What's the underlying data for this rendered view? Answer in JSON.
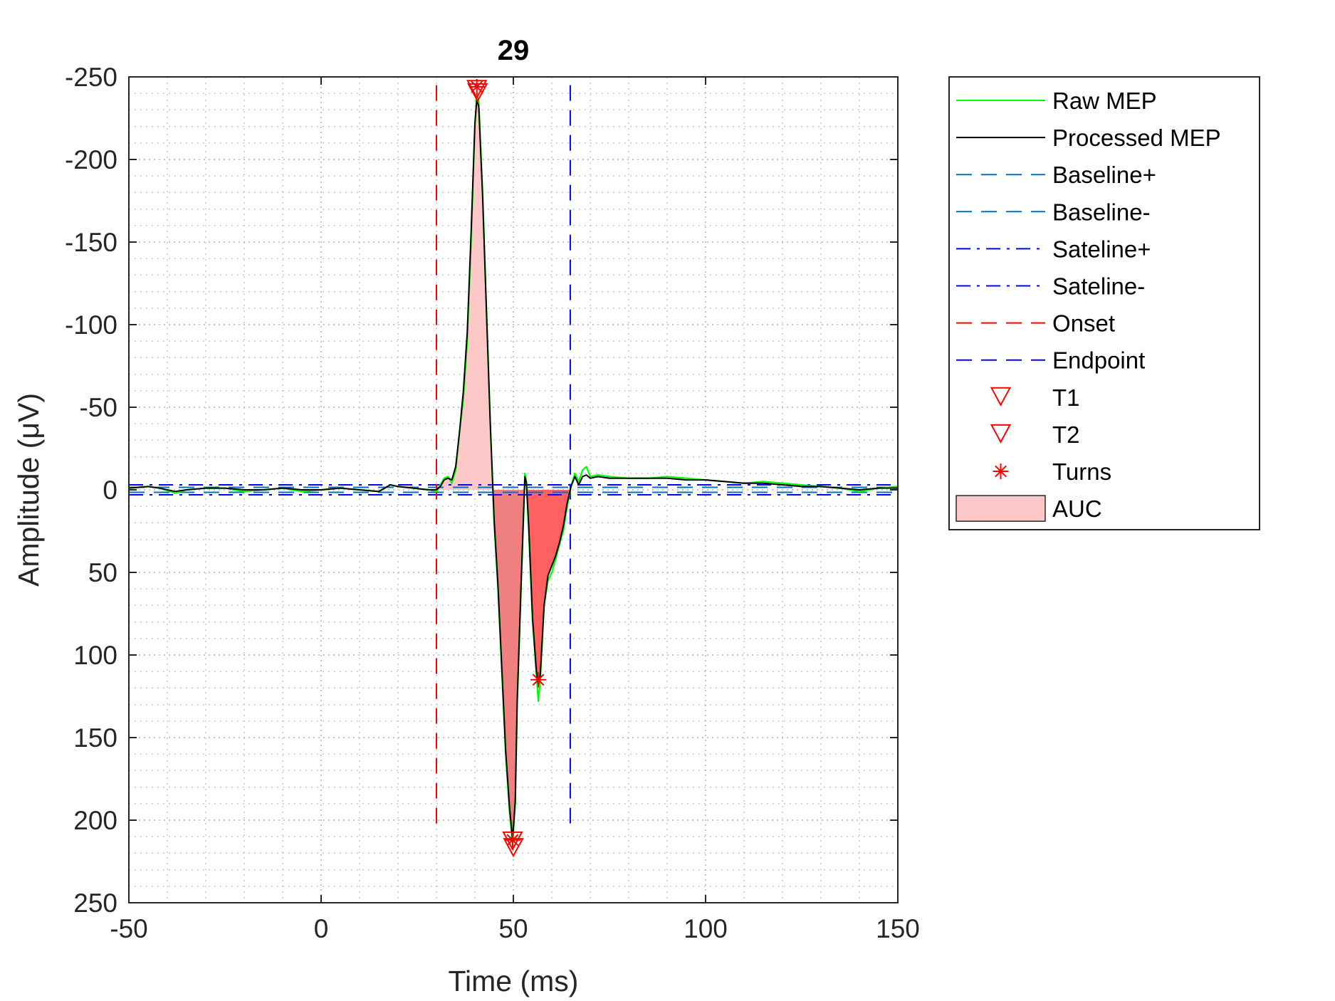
{
  "chart_data": {
    "type": "line",
    "title": "29",
    "xlabel": "Time (ms)",
    "ylabel": "Amplitude (μV)",
    "xlim": [
      -50,
      150
    ],
    "ylim": [
      -250,
      250
    ],
    "y_reversed": true,
    "xticks": [
      -50,
      0,
      50,
      100,
      150
    ],
    "xtick_labels": [
      "-50",
      "0",
      "50",
      "100",
      "150"
    ],
    "yticks": [
      -250,
      -200,
      -150,
      -100,
      -50,
      0,
      50,
      100,
      150,
      200,
      250
    ],
    "ytick_labels": [
      "-250",
      "-200",
      "-150",
      "-100",
      "-50",
      "0",
      "50",
      "100",
      "150",
      "200",
      "250"
    ],
    "grid": true,
    "minor_grid": true,
    "legend_position": "outside-right",
    "series": [
      {
        "name": "Raw MEP",
        "style": "solid",
        "color": "#00ff00",
        "points": [
          [
            -50,
            -1
          ],
          [
            -45,
            -2
          ],
          [
            -42,
            -1
          ],
          [
            -38,
            2
          ],
          [
            -35,
            0
          ],
          [
            -30,
            -1
          ],
          [
            -25,
            -1
          ],
          [
            -20,
            1
          ],
          [
            -15,
            0
          ],
          [
            -10,
            -1
          ],
          [
            -5,
            1
          ],
          [
            0,
            0
          ],
          [
            5,
            -1
          ],
          [
            10,
            0
          ],
          [
            15,
            1
          ],
          [
            18,
            -3
          ],
          [
            20,
            -2
          ],
          [
            24,
            -1
          ],
          [
            28,
            0
          ],
          [
            30,
            1
          ],
          [
            31,
            -3
          ],
          [
            32,
            -7
          ],
          [
            33,
            -8
          ],
          [
            34,
            -4
          ],
          [
            35,
            -12
          ],
          [
            36,
            -35
          ],
          [
            37,
            -55
          ],
          [
            38,
            -90
          ],
          [
            39,
            -150
          ],
          [
            40,
            -220
          ],
          [
            40.5,
            -240
          ],
          [
            41,
            -235
          ],
          [
            42,
            -180
          ],
          [
            43,
            -110
          ],
          [
            44,
            -40
          ],
          [
            45,
            20
          ],
          [
            46,
            60
          ],
          [
            47,
            110
          ],
          [
            48,
            160
          ],
          [
            49,
            195
          ],
          [
            49.8,
            214
          ],
          [
            50.5,
            190
          ],
          [
            51,
            130
          ],
          [
            52,
            60
          ],
          [
            52.6,
            20
          ],
          [
            53,
            -10
          ],
          [
            53.4,
            -5
          ],
          [
            54,
            25
          ],
          [
            55,
            80
          ],
          [
            56,
            112
          ],
          [
            56.5,
            128
          ],
          [
            57,
            115
          ],
          [
            58,
            70
          ],
          [
            59,
            55
          ],
          [
            60,
            50
          ],
          [
            61,
            42
          ],
          [
            62,
            33
          ],
          [
            63,
            25
          ],
          [
            64,
            10
          ],
          [
            65,
            -2
          ],
          [
            66,
            -10
          ],
          [
            67,
            -5
          ],
          [
            68,
            -12
          ],
          [
            69,
            -14
          ],
          [
            70,
            -8
          ],
          [
            72,
            -9
          ],
          [
            75,
            -8
          ],
          [
            80,
            -7
          ],
          [
            85,
            -7
          ],
          [
            90,
            -8
          ],
          [
            95,
            -7
          ],
          [
            100,
            -6
          ],
          [
            105,
            -5
          ],
          [
            110,
            -4
          ],
          [
            115,
            -5
          ],
          [
            120,
            -4
          ],
          [
            125,
            -3
          ],
          [
            130,
            -2
          ],
          [
            135,
            -1
          ],
          [
            140,
            1
          ],
          [
            145,
            -1
          ],
          [
            150,
            -2
          ]
        ]
      },
      {
        "name": "Processed MEP",
        "style": "solid",
        "color": "#000000",
        "points": [
          [
            -50,
            -1
          ],
          [
            -45,
            -2
          ],
          [
            -42,
            -1
          ],
          [
            -38,
            1
          ],
          [
            -35,
            0
          ],
          [
            -30,
            -1
          ],
          [
            -25,
            -1
          ],
          [
            -20,
            0
          ],
          [
            -15,
            0
          ],
          [
            -10,
            -1
          ],
          [
            -5,
            0
          ],
          [
            0,
            0
          ],
          [
            5,
            -1
          ],
          [
            10,
            0
          ],
          [
            15,
            1
          ],
          [
            18,
            -3
          ],
          [
            20,
            -2
          ],
          [
            24,
            -1
          ],
          [
            28,
            0
          ],
          [
            30,
            0
          ],
          [
            31,
            -2
          ],
          [
            32,
            -6
          ],
          [
            33,
            -7
          ],
          [
            34,
            -6
          ],
          [
            35,
            -14
          ],
          [
            36,
            -35
          ],
          [
            37,
            -60
          ],
          [
            38,
            -95
          ],
          [
            39,
            -155
          ],
          [
            40,
            -222
          ],
          [
            40.5,
            -236
          ],
          [
            41,
            -232
          ],
          [
            42,
            -178
          ],
          [
            43,
            -108
          ],
          [
            44,
            -40
          ],
          [
            45,
            18
          ],
          [
            46,
            58
          ],
          [
            47,
            108
          ],
          [
            48,
            158
          ],
          [
            49,
            192
          ],
          [
            49.8,
            212
          ],
          [
            50.5,
            188
          ],
          [
            51,
            128
          ],
          [
            52,
            58
          ],
          [
            52.6,
            18
          ],
          [
            53,
            -8
          ],
          [
            53.4,
            -4
          ],
          [
            54,
            22
          ],
          [
            55,
            78
          ],
          [
            56,
            110
          ],
          [
            56.5,
            118
          ],
          [
            57,
            112
          ],
          [
            58,
            70
          ],
          [
            59,
            52
          ],
          [
            60,
            46
          ],
          [
            61,
            40
          ],
          [
            62,
            32
          ],
          [
            63,
            22
          ],
          [
            64,
            8
          ],
          [
            65,
            -2
          ],
          [
            66,
            -8
          ],
          [
            67,
            -3
          ],
          [
            68,
            -8
          ],
          [
            69,
            -9
          ],
          [
            70,
            -7
          ],
          [
            72,
            -8
          ],
          [
            75,
            -7
          ],
          [
            80,
            -7
          ],
          [
            85,
            -7
          ],
          [
            90,
            -7
          ],
          [
            95,
            -6
          ],
          [
            100,
            -6
          ],
          [
            105,
            -5
          ],
          [
            110,
            -4
          ],
          [
            115,
            -4
          ],
          [
            120,
            -3
          ],
          [
            125,
            -2
          ],
          [
            130,
            -2
          ],
          [
            135,
            -1
          ],
          [
            140,
            0
          ],
          [
            145,
            -1
          ],
          [
            150,
            -1
          ]
        ]
      }
    ],
    "reference_lines": [
      {
        "name": "Baseline+",
        "orientation": "horizontal",
        "value": 1.5,
        "x_range": [
          -50,
          150
        ],
        "style": "dashed",
        "color": "#0072bd"
      },
      {
        "name": "Baseline-",
        "orientation": "horizontal",
        "value": -1.5,
        "x_range": [
          -50,
          150
        ],
        "style": "dashed",
        "color": "#0072bd"
      },
      {
        "name": "Sateline+",
        "orientation": "horizontal",
        "value": 3,
        "x_range": [
          -50,
          150
        ],
        "style": "dashdot",
        "color": "#0000ff"
      },
      {
        "name": "Sateline-",
        "orientation": "horizontal",
        "value": -3,
        "x_range": [
          -50,
          150
        ],
        "style": "dashdot",
        "color": "#0000ff"
      },
      {
        "name": "Onset",
        "orientation": "vertical",
        "value": 30,
        "y_range": [
          -245,
          205
        ],
        "style": "dashed",
        "color": "#ff0000"
      },
      {
        "name": "Endpoint",
        "orientation": "vertical",
        "value": 64.8,
        "y_range": [
          -245,
          205
        ],
        "style": "dashed",
        "color": "#0000ff"
      }
    ],
    "markers": [
      {
        "name": "T1",
        "symbol": "triangle-down",
        "color": "#ff0000",
        "points": [
          [
            40.5,
            -243
          ],
          [
            49.8,
            212
          ]
        ]
      },
      {
        "name": "T2",
        "symbol": "triangle-down",
        "color": "#ff0000",
        "points": [
          [
            40.7,
            -241
          ],
          [
            50,
            216
          ]
        ]
      },
      {
        "name": "Turns",
        "symbol": "asterisk",
        "color": "#ff0000",
        "points": [
          [
            40.5,
            -244
          ],
          [
            56.5,
            115
          ],
          [
            49.8,
            212
          ]
        ]
      }
    ],
    "auc": {
      "name": "AUC",
      "regions": [
        {
          "x_range": [
            30,
            44.5
          ],
          "color": "#ffc8c8"
        },
        {
          "x_range": [
            44.5,
            52.8
          ],
          "color": "#f08080"
        },
        {
          "x_range": [
            53.4,
            64.8
          ],
          "color": "#ff6060"
        }
      ]
    },
    "legend": [
      "Raw MEP",
      "Processed MEP",
      "Baseline+",
      "Baseline-",
      "Sateline+",
      "Sateline-",
      "Onset",
      "Endpoint",
      "T1",
      "T2",
      "Turns",
      "AUC"
    ]
  }
}
